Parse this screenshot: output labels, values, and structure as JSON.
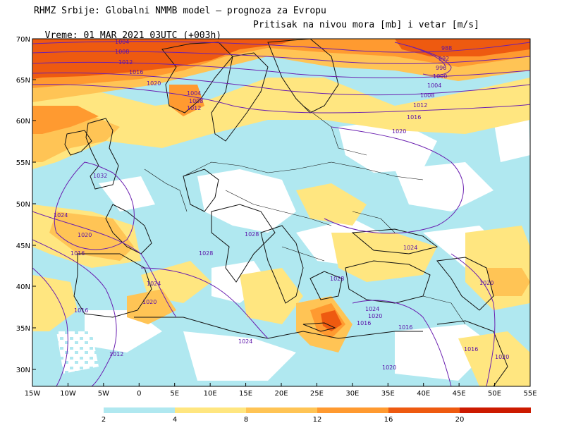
{
  "header": {
    "line1": "RHMZ Srbije: Globalni NMMB model – prognoza za Evropu",
    "line2": "Vreme: 01 MAR 2021 03UTC (+003h)",
    "line2_right": "Pritisak na nivou mora [mb] i vetar [m/s]"
  },
  "axes": {
    "lon_ticks": [
      "15W",
      "10W",
      "5W",
      "0",
      "5E",
      "10E",
      "15E",
      "20E",
      "25E",
      "30E",
      "35E",
      "40E",
      "45E",
      "50E",
      "55E"
    ],
    "lat_ticks": [
      "70N",
      "65N",
      "60N",
      "55N",
      "50N",
      "45N",
      "40N",
      "35N",
      "30N"
    ]
  },
  "legend": {
    "labels": [
      "2",
      "4",
      "8",
      "12",
      "16",
      "20"
    ],
    "colors": [
      "#b0e8f0",
      "#ffe680",
      "#ffc455",
      "#ff9a30",
      "#ee5a10",
      "#cc1a00"
    ]
  },
  "isobars": {
    "labels": [
      "1004",
      "1008",
      "1012",
      "1016",
      "1020",
      "1024",
      "1032",
      "1028",
      "988",
      "992",
      "996",
      "1000"
    ]
  },
  "colors": {
    "isobar": "#6a1fb0",
    "land_border": "#111111",
    "background": "#ffffff"
  }
}
